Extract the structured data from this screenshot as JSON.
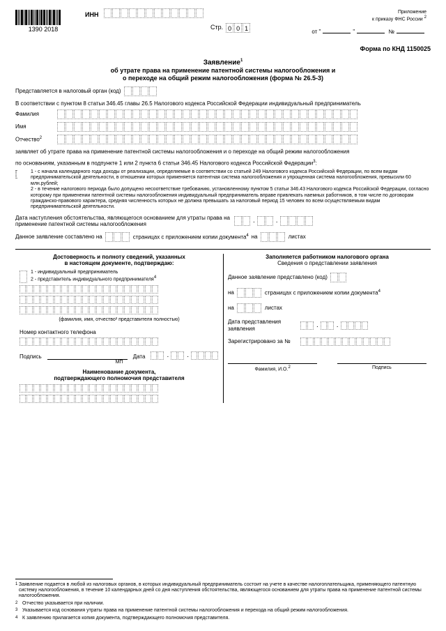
{
  "barcode_text": "1390 2018",
  "inn_label": "ИНН",
  "header_note": "Приложение\nк приказу ФНС России",
  "header_note_sup": "2",
  "str_label": "Стр.",
  "str_value": "001",
  "ot_label": "от",
  "num_label": "№",
  "form_code": "Форма по КНД 1150025",
  "title_line1": "Заявление",
  "title_sup": "1",
  "title_line2": "об утрате права на применение патентной системы налогообложения и",
  "title_line3": "о переходе на общий режим налогообложения (форма № 26.5-3)",
  "represents_label": "Представляется в налоговый орган (код)",
  "accordance": "В соответствии с пунктом 8 статьи 346.45 главы 26.5 Налогового кодекса Российской Федерации индивидуальный предприниматель",
  "surname_label": "Фамилия",
  "name_label": "Имя",
  "patronymic_label": "Отчество",
  "patronymic_sup": "2",
  "declares": "заявляет об утрате права на применение патентной системы налогообложения и о переходе на общий режим налогообложения",
  "basis_intro": "по основаниям, указанным в подпункте 1 или 2 пункта 6 статьи 346.45 Налогового кодекса Российской Федерации",
  "basis_sup": "3",
  "basis1": "1 - с начала календарного года доходы от реализации, определяемые в соответствии со статьей 249 Налогового кодекса Российской Федерации, по всем видам предпринимательской деятельности, в отношении которых применяется патентная система налогообложения и упрощенная система налогообложения, превысили 60 млн.рублей;\n2 - в течение налогового периода было допущено несоответствие требованию, установленному пунктом 5 статьи 346.43 Налогового кодекса Российской Федерации, согласно которому при применении патентной системы налогообложения индивидуальный предприниматель вправе привлекать наемных работников, в том числе по договорам гражданско-правового характера, средняя численность которых не должна превышать за налоговый период 15 человек по всем осуществляемым видам предпринимательской деятельности.",
  "date_notice": "Дата наступления обстоятельства, являющегося основанием для утраты права на применение патентной системы налогообложения",
  "pages_label_1": "Данное заявление составлено на",
  "pages_mid": "страницах с приложением копии документа",
  "pages_sup": "4",
  "pages_end": "на",
  "sheets_label": "листах",
  "left_head1": "Достоверность и полноту сведений, указанных",
  "left_head2": "в настоящем документе, подтверждаю:",
  "rep_opt1": "1 - индивидуальный предприниматель",
  "rep_opt2": "2 - представитель индивидуального предпринимателя",
  "rep_opt_sup": "4",
  "fio_caption": "(фамилия, имя, отчество² представителя полностью)",
  "phone_label": "Номер контактного телефона",
  "sign_label": "Подпись",
  "date_label": "Дата",
  "mp_label": "МП",
  "doc_name1": "Наименование документа,",
  "doc_name2": "подтверждающего полномочия представителя",
  "right_head1": "Заполняется работником налогового органа",
  "right_head2": "Сведения о представлении заявления",
  "right_presented": "Данное заявление представлено (код)",
  "right_on": "на",
  "right_pages_mid": "страницах с приложением копии документа",
  "right_sheets": "листах",
  "right_date_label": "Дата представления заявления",
  "right_reg": "Зарегистрировано за №",
  "right_fio": "Фамилия, И.О.",
  "right_sign": "Подпись",
  "fn1": "Заявление подается в любой из налоговых органов, в которых индивидуальный предприниматель состоит на учете в качестве налогоплательщика, применяющего патентную систему налогообложения, в течение 10 календарных дней со дня наступления обстоятельства, являющегося основанием для утраты права на применение патентной системы налогообложения.",
  "fn2": "Отчество указывается при наличии.",
  "fn3": "Указывается код основания утраты права на применение патентной системы налогообложения и перехода на общий режим налогообложения.",
  "fn4": "К заявлению прилагается копия документа, подтверждающего полномочия представителя."
}
